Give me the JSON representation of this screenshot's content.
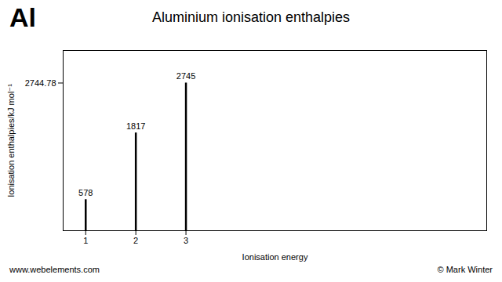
{
  "chart_data": {
    "type": "bar",
    "title": "Aluminium ionisation enthalpies",
    "x_label": "Ionisation energy",
    "y_label": "Ionisation enthalpies/kJ mol⁻¹",
    "x": [
      1,
      2,
      3
    ],
    "values": [
      578,
      1817,
      2745
    ],
    "color": "#000000",
    "xlim": [
      0.55,
      9.0
    ],
    "xticks": [
      1,
      2,
      3
    ],
    "ylim": [
      0,
      3348.6316
    ],
    "yticks": [
      2744.78
    ],
    "data_labels": true,
    "annotations": [
      "Al",
      "www.webelements.com",
      "© Mark Winter"
    ]
  }
}
